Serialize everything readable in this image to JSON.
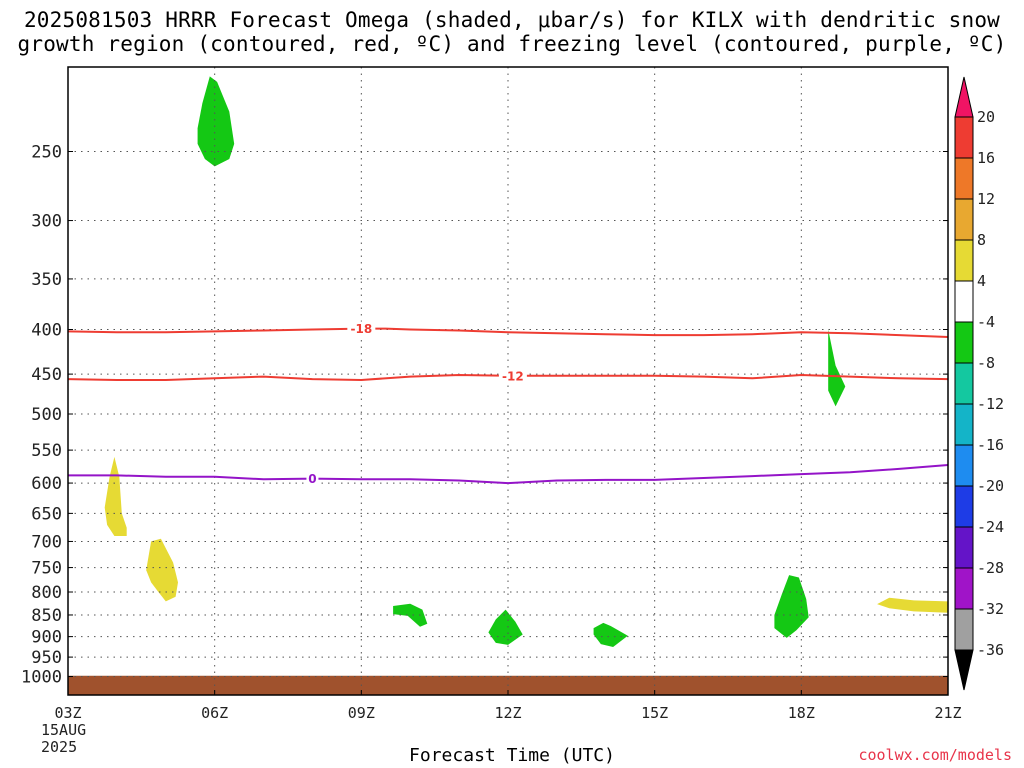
{
  "title_line1": "2025081503 HRRR Forecast Omega (shaded, μbar/s) for KILX with dendritic snow",
  "title_line2": "growth region (contoured, red, ºC) and freezing level (contoured, purple, ºC)",
  "xlabel": "Forecast Time (UTC)",
  "credit": "coolwx.com/models",
  "chart_data": {
    "type": "heatmap",
    "x_range_hours": [
      0,
      18
    ],
    "y_range_hpa": [
      1050,
      200
    ],
    "y_ticks": [
      250,
      300,
      350,
      400,
      450,
      500,
      550,
      600,
      650,
      700,
      750,
      800,
      850,
      900,
      950,
      1000
    ],
    "x_ticks": [
      {
        "h": 0,
        "label": "03Z",
        "sub1": "15AUG",
        "sub2": "2025"
      },
      {
        "h": 3,
        "label": "06Z"
      },
      {
        "h": 6,
        "label": "09Z"
      },
      {
        "h": 9,
        "label": "12Z"
      },
      {
        "h": 12,
        "label": "15Z"
      },
      {
        "h": 15,
        "label": "18Z"
      },
      {
        "h": 18,
        "label": "21Z"
      }
    ],
    "grid": true,
    "colorbar": {
      "labels": [
        "20",
        "16",
        "12",
        "8",
        "4",
        "-4",
        "-8",
        "-12",
        "-16",
        "-20",
        "-24",
        "-28",
        "-32",
        "-36"
      ],
      "colors": [
        "#f01464",
        "#ee3c32",
        "#ee7828",
        "#e8a830",
        "#e6da34",
        "#ffffff",
        "#14c814",
        "#14c8a0",
        "#14b4c8",
        "#1e8cf0",
        "#1e3ce6",
        "#6414c8",
        "#a014c8",
        "#a0a0a0",
        "#000000"
      ]
    },
    "omega_regions": [
      {
        "color": "#14c814",
        "points": [
          [
            2.65,
            235
          ],
          [
            2.75,
            220
          ],
          [
            2.9,
            205
          ],
          [
            3.05,
            208
          ],
          [
            3.3,
            225
          ],
          [
            3.4,
            245
          ],
          [
            3.3,
            255
          ],
          [
            3.0,
            260
          ],
          [
            2.8,
            255
          ],
          [
            2.65,
            245
          ]
        ]
      },
      {
        "color": "#e6da34",
        "points": [
          [
            0.75,
            640
          ],
          [
            0.85,
            590
          ],
          [
            0.95,
            560
          ],
          [
            1.05,
            590
          ],
          [
            1.1,
            650
          ],
          [
            1.2,
            675
          ],
          [
            1.2,
            690
          ],
          [
            0.95,
            690
          ],
          [
            0.8,
            670
          ]
        ]
      },
      {
        "color": "#e6da34",
        "points": [
          [
            1.6,
            755
          ],
          [
            1.7,
            700
          ],
          [
            1.9,
            695
          ],
          [
            2.15,
            740
          ],
          [
            2.25,
            780
          ],
          [
            2.2,
            810
          ],
          [
            2.0,
            820
          ],
          [
            1.85,
            800
          ],
          [
            1.7,
            780
          ]
        ]
      },
      {
        "color": "#14c814",
        "points": [
          [
            15.55,
            400
          ],
          [
            15.7,
            440
          ],
          [
            15.9,
            465
          ],
          [
            15.7,
            490
          ],
          [
            15.55,
            470
          ]
        ]
      },
      {
        "color": "#14c814",
        "points": [
          [
            6.65,
            830
          ],
          [
            7.0,
            825
          ],
          [
            7.25,
            838
          ],
          [
            7.35,
            870
          ],
          [
            7.2,
            877
          ],
          [
            6.95,
            852
          ],
          [
            6.65,
            848
          ]
        ]
      },
      {
        "color": "#14c814",
        "points": [
          [
            8.6,
            890
          ],
          [
            8.75,
            860
          ],
          [
            8.95,
            838
          ],
          [
            9.15,
            865
          ],
          [
            9.3,
            895
          ],
          [
            9.0,
            920
          ],
          [
            8.75,
            915
          ]
        ]
      },
      {
        "color": "#14c814",
        "points": [
          [
            10.75,
            880
          ],
          [
            10.95,
            868
          ],
          [
            11.1,
            875
          ],
          [
            11.45,
            898
          ],
          [
            11.15,
            925
          ],
          [
            10.9,
            918
          ],
          [
            10.75,
            895
          ]
        ]
      },
      {
        "color": "#14c814",
        "points": [
          [
            14.45,
            850
          ],
          [
            14.6,
            805
          ],
          [
            14.75,
            765
          ],
          [
            14.95,
            770
          ],
          [
            15.1,
            815
          ],
          [
            15.15,
            855
          ],
          [
            14.9,
            885
          ],
          [
            14.7,
            903
          ],
          [
            14.45,
            880
          ]
        ]
      },
      {
        "color": "#e6da34",
        "points": [
          [
            16.55,
            826
          ],
          [
            16.8,
            812
          ],
          [
            17.3,
            818
          ],
          [
            18.0,
            820
          ],
          [
            18.0,
            845
          ],
          [
            17.3,
            842
          ],
          [
            16.8,
            835
          ]
        ]
      }
    ],
    "contours": [
      {
        "name": "-18",
        "color": "#ee3c32",
        "label": "-18",
        "label_at_hour": 6.0,
        "x": [
          0,
          1,
          2,
          3,
          4,
          5,
          6,
          6.5,
          7,
          8,
          9,
          10,
          11,
          12,
          13,
          14,
          15,
          16,
          17,
          18
        ],
        "y": [
          402,
          403,
          403,
          402,
          401,
          400,
          399,
          399,
          400,
          401,
          403,
          404,
          405,
          406,
          406,
          405,
          403,
          404,
          406,
          408
        ]
      },
      {
        "name": "-12",
        "color": "#ee3c32",
        "label": "-12",
        "label_at_hour": 9.1,
        "x": [
          0,
          1,
          2,
          3,
          4,
          5,
          6,
          7,
          8,
          9,
          10,
          11,
          12,
          13,
          14,
          15,
          16,
          17,
          18
        ],
        "y": [
          456,
          457,
          457,
          455,
          453,
          456,
          457,
          453,
          451,
          452,
          452,
          452,
          452,
          453,
          455,
          451,
          453,
          455,
          456
        ]
      },
      {
        "name": "0",
        "color": "#9414c8",
        "label": "0",
        "label_at_hour": 5.0,
        "x": [
          0,
          1,
          2,
          3,
          4,
          5,
          6,
          7,
          8,
          9,
          10,
          11,
          12,
          13,
          14,
          15,
          16,
          17,
          18
        ],
        "y": [
          588,
          588,
          590,
          590,
          594,
          593,
          594,
          594,
          596,
          600,
          596,
          595,
          595,
          592,
          589,
          586,
          583,
          578,
          572
        ]
      }
    ],
    "terrain": {
      "color": "#a0522d",
      "top_hpa": 998
    }
  }
}
